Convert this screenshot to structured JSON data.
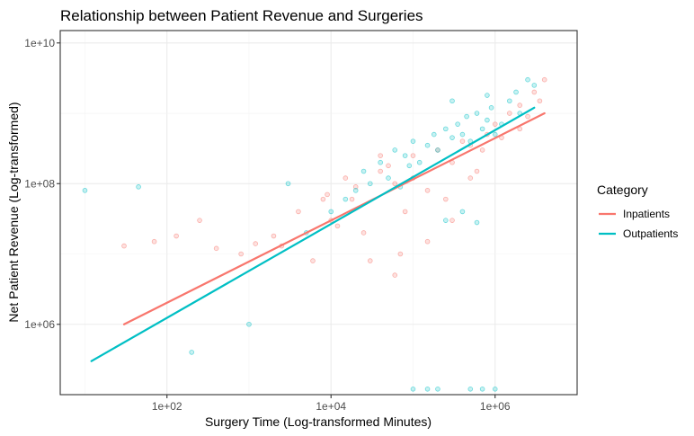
{
  "chart_data": {
    "type": "scatter",
    "title": "Relationship between Patient Revenue and Surgeries",
    "xlabel": "Surgery Time (Log-transformed Minutes)",
    "ylabel": "Net Patient Revenue (Log-transformed)",
    "x_scale": "log10",
    "y_scale": "log10",
    "xlim": [
      5,
      10000000
    ],
    "ylim": [
      100000,
      15000000000
    ],
    "x_ticks": [
      100,
      10000,
      1000000
    ],
    "x_tick_labels": [
      "1e+02",
      "1e+04",
      "1e+06"
    ],
    "y_ticks": [
      1000000,
      100000000,
      10000000000
    ],
    "y_tick_labels": [
      "1e+06",
      "1e+08",
      "1e+10"
    ],
    "grid": true,
    "legend": {
      "title": "Category",
      "placement": "right",
      "entries": [
        {
          "label": "Inpatients",
          "color": "#F8766D"
        },
        {
          "label": "Outpatients",
          "color": "#00BFC4"
        }
      ]
    },
    "series": [
      {
        "name": "Inpatients",
        "color": "#F8766D",
        "trend_line": {
          "x": [
            30,
            4000000
          ],
          "y": [
            1000000,
            1000000000
          ]
        },
        "points": {
          "x": [
            30,
            70,
            130,
            250,
            400,
            800,
            1200,
            2000,
            2500,
            4000,
            6000,
            8000,
            10000,
            15000,
            20000,
            25000,
            40000,
            60000,
            80000,
            100000,
            150000,
            200000,
            300000,
            400000,
            500000,
            600000,
            800000,
            1000000,
            1500000,
            2000000,
            3000000,
            4000000,
            3500000,
            2500000,
            500000,
            150000,
            60000,
            30000,
            12000,
            9000,
            250000,
            700000,
            1200000,
            40000,
            18000,
            300000,
            100000,
            70000,
            50000,
            2000000
          ],
          "y": [
            13000000,
            15000000,
            18000000,
            30000000,
            12000000,
            10000000,
            14000000,
            18000000,
            13000000,
            40000000,
            8000000,
            60000000,
            30000000,
            120000000,
            90000000,
            20000000,
            150000000,
            100000000,
            40000000,
            250000000,
            80000000,
            300000000,
            200000000,
            400000000,
            350000000,
            150000000,
            500000000,
            700000000,
            1000000000,
            600000000,
            2000000000,
            3000000000,
            1500000000,
            900000000,
            120000000,
            15000000,
            5000000,
            8000000,
            25000000,
            70000000,
            60000000,
            300000000,
            450000000,
            250000000,
            60000000,
            30000000,
            120000000,
            10000000,
            180000000,
            1300000000
          ]
        }
      },
      {
        "name": "Outpatients",
        "color": "#00BFC4",
        "trend_line": {
          "x": [
            12,
            3000000
          ],
          "y": [
            300000,
            1200000000
          ]
        },
        "points": {
          "x": [
            10,
            45,
            200,
            1000,
            3000,
            5000,
            10000,
            15000,
            20000,
            25000,
            30000,
            40000,
            50000,
            60000,
            70000,
            80000,
            90000,
            100000,
            120000,
            150000,
            180000,
            200000,
            250000,
            300000,
            350000,
            400000,
            450000,
            500000,
            600000,
            700000,
            800000,
            900000,
            1000000,
            1200000,
            1500000,
            1800000,
            2000000,
            2500000,
            3000000,
            250000,
            400000,
            600000,
            300000,
            800000,
            700000,
            500000,
            1000000,
            200000,
            150000,
            100000
          ],
          "y": [
            80000000,
            90000000,
            400000,
            1000000,
            100000000,
            20000000,
            40000000,
            60000000,
            80000000,
            150000000,
            100000000,
            200000000,
            120000000,
            300000000,
            90000000,
            250000000,
            180000000,
            400000000,
            200000000,
            350000000,
            500000000,
            300000000,
            600000000,
            450000000,
            700000000,
            500000000,
            900000000,
            400000000,
            1000000000,
            600000000,
            800000000,
            1200000000,
            500000000,
            700000000,
            1500000000,
            2000000000,
            1000000000,
            3000000000,
            2500000000,
            30000000,
            40000000,
            28000000,
            1500000000,
            1800000000,
            120000,
            120000,
            120000,
            120000,
            120000,
            120000
          ]
        }
      }
    ]
  }
}
